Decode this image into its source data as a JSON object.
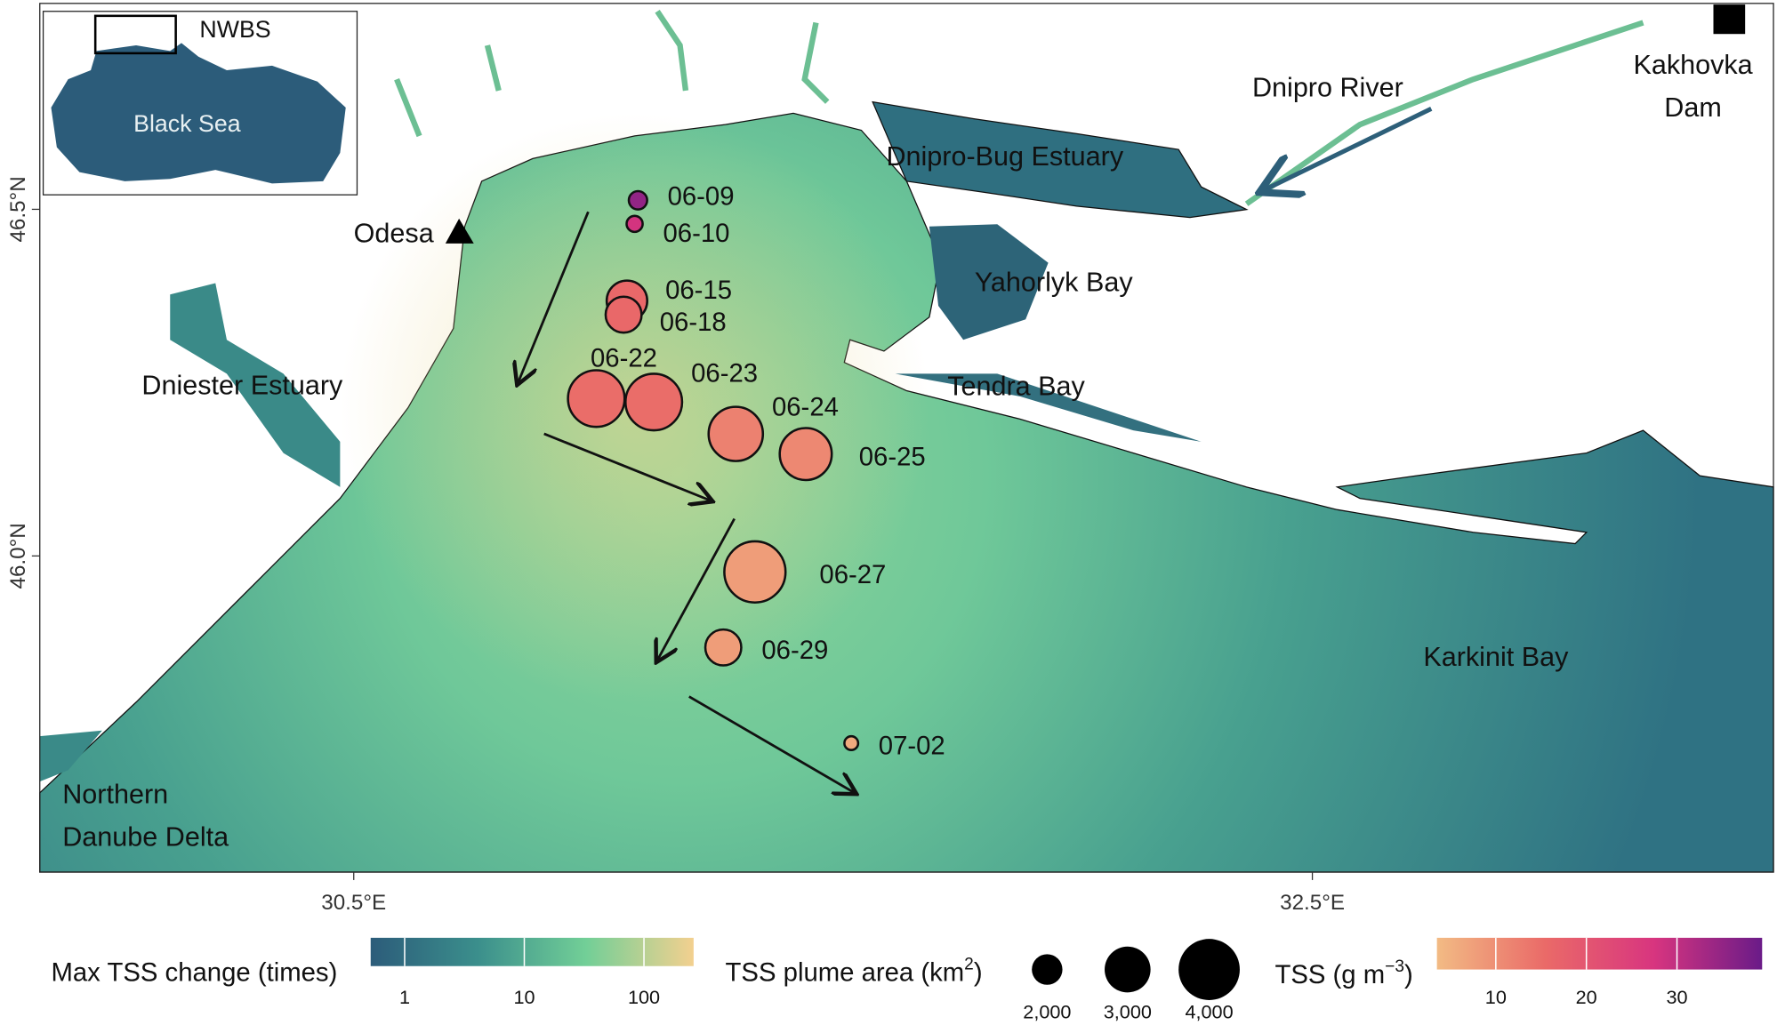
{
  "map": {
    "xlim": [
      29.845,
      33.462
    ],
    "ylim": [
      45.544,
      46.797
    ],
    "xticks": [
      {
        "value": 30.5,
        "label": "30.5°E"
      },
      {
        "value": 32.5,
        "label": "32.5°E"
      }
    ],
    "yticks": [
      {
        "value": 46.0,
        "label": "46.0°N"
      },
      {
        "value": 46.5,
        "label": "46.5°N"
      }
    ],
    "places": [
      {
        "label": "Odesa"
      },
      {
        "label": "Dniester Estuary"
      },
      {
        "lines": [
          "Northern",
          "Danube Delta"
        ]
      },
      {
        "label": "Dnipro-Bug Estuary"
      },
      {
        "label": "Yahorlyk Bay"
      },
      {
        "label": "Tendra Bay"
      },
      {
        "label": "Karkinit Bay"
      },
      {
        "label": "Dnipro River"
      },
      {
        "lines": [
          "Kakhovka",
          "Dam"
        ]
      }
    ],
    "inset": {
      "region": "NWBS",
      "sea": "Black Sea"
    },
    "plumes": [
      {
        "date": "06-09",
        "lon": 31.093,
        "lat": 46.513,
        "area": 1200,
        "tss": 35
      },
      {
        "date": "06-10",
        "lon": 31.086,
        "lat": 46.479,
        "area": 1050,
        "tss": 28
      },
      {
        "date": "06-15",
        "lon": 31.07,
        "lat": 46.368,
        "area": 2650,
        "tss": 16
      },
      {
        "date": "06-18",
        "lon": 31.063,
        "lat": 46.348,
        "area": 2350,
        "tss": 16
      },
      {
        "date": "06-22",
        "lon": 31.006,
        "lat": 46.227,
        "area": 3700,
        "tss": 15
      },
      {
        "date": "06-23",
        "lon": 31.126,
        "lat": 46.222,
        "area": 3700,
        "tss": 15
      },
      {
        "date": "06-24",
        "lon": 31.297,
        "lat": 46.176,
        "area": 3550,
        "tss": 12
      },
      {
        "date": "06-25",
        "lon": 31.443,
        "lat": 46.147,
        "area": 3400,
        "tss": 11
      },
      {
        "date": "06-27",
        "lon": 31.337,
        "lat": 45.977,
        "area": 4000,
        "tss": 8
      },
      {
        "date": "06-29",
        "lon": 31.271,
        "lat": 45.868,
        "area": 2350,
        "tss": 8
      },
      {
        "date": "07-02",
        "lon": 31.538,
        "lat": 45.73,
        "area": 900,
        "tss": 6
      }
    ]
  },
  "legends": {
    "change": {
      "title": "Max TSS change (times)",
      "log": true,
      "lim": [
        0.52,
        260
      ],
      "ticks": [
        1,
        10,
        100
      ],
      "colors": [
        "#2c5c7a",
        "#3b8f8c",
        "#72cf97",
        "#f3d08f"
      ]
    },
    "area": {
      "title": [
        "TSS plume area (km",
        "2",
        ")"
      ],
      "ticks": [
        {
          "value": 2000,
          "label": "2,000"
        },
        {
          "value": 3000,
          "label": "3,000"
        },
        {
          "value": 4000,
          "label": "4,000"
        }
      ]
    },
    "tss": {
      "title": [
        "TSS (g m",
        "−3",
        ")"
      ],
      "lim": [
        3.5,
        39.4
      ],
      "ticks": [
        10,
        20,
        30
      ],
      "colors": [
        "#f2bb84",
        "#ea6a68",
        "#d8357f",
        "#6a1b88"
      ]
    }
  }
}
